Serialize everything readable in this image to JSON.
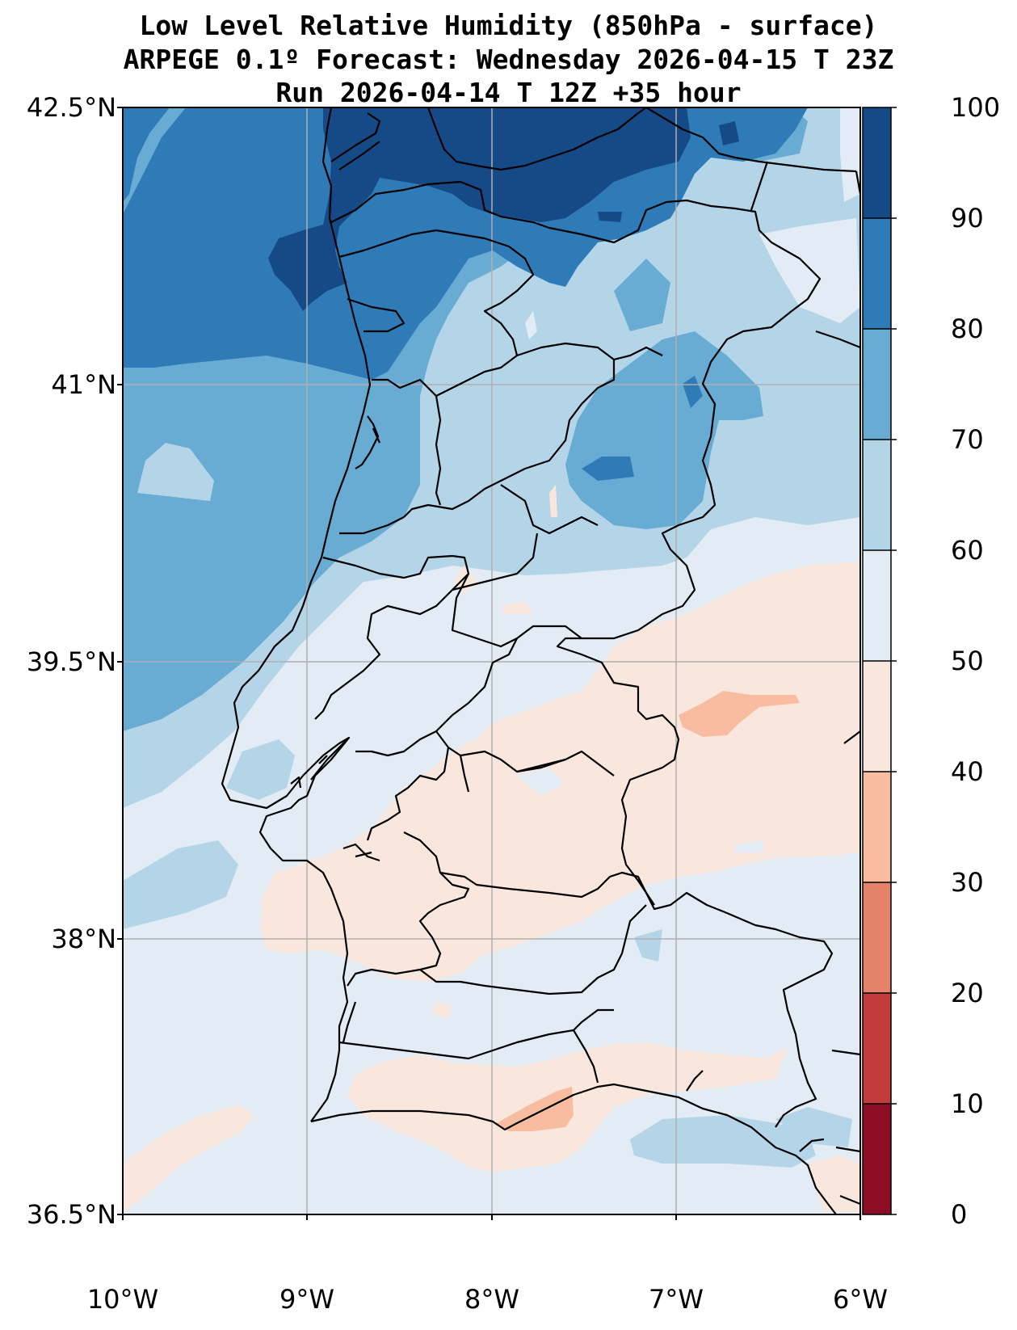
{
  "title": {
    "line1": "Low Level Relative Humidity (850hPa - surface)",
    "line2": "ARPEGE 0.1º Forecast: Wednesday 2026-04-15 T 23Z",
    "line3": "Run 2026-04-14 T 12Z +35 hour"
  },
  "map": {
    "lon_range": [
      -10,
      -6
    ],
    "lat_range": [
      36.5,
      42.5
    ],
    "lat_ticks": [
      "42.5°N",
      "41°N",
      "39.5°N",
      "38°N",
      "36.5°N"
    ],
    "lon_ticks": [
      "10°W",
      "9°W",
      "8°W",
      "7°W",
      "6°W"
    ]
  },
  "colorbar": {
    "ticks": [
      "100",
      "90",
      "80",
      "70",
      "60",
      "50",
      "40",
      "30",
      "20",
      "10",
      "0"
    ],
    "colors": [
      "#154a87",
      "#2f7bb8",
      "#68abd3",
      "#b4d5e7",
      "#e3ecf4",
      "#f9e7de",
      "#f8bda1",
      "#e4826a",
      "#c33c3c",
      "#8c0d25"
    ]
  },
  "colors": {
    "background": "#e3ecf4",
    "rh_90_100": "#154a87",
    "rh_80_90": "#2f7bb8",
    "rh_70_80": "#68abd3",
    "rh_60_70": "#b4d5e7",
    "rh_50_60": "#e3ecf4",
    "rh_40_50": "#f9e7de",
    "rh_30_40": "#f8bda1",
    "grid": "#b0b0b0",
    "border": "#000000"
  }
}
